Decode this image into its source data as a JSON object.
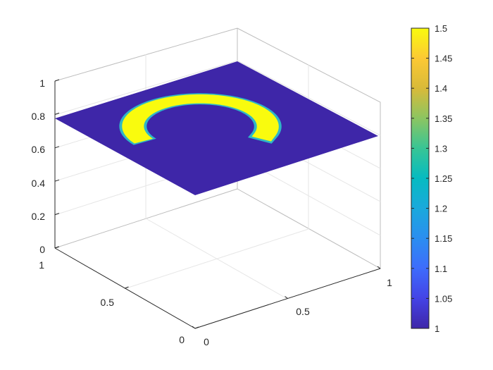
{
  "chart_data": {
    "type": "surface",
    "title": "",
    "xlabel": "",
    "ylabel": "",
    "zlabel": "",
    "xlim": [
      0,
      1
    ],
    "ylim": [
      0,
      1
    ],
    "zlim": [
      0,
      1
    ],
    "x_ticks": [
      "0",
      "0.5",
      "1"
    ],
    "y_ticks": [
      "0",
      "0.5",
      "1"
    ],
    "z_ticks": [
      "0",
      "0.2",
      "0.4",
      "0.6",
      "0.8",
      "1"
    ],
    "surface_height": 0.8,
    "grid": true,
    "colormap": "parula",
    "color_range": [
      1,
      1.5
    ],
    "colorbar": {
      "placement": "right",
      "ticks": [
        "1",
        "1.05",
        "1.1",
        "1.15",
        "1.2",
        "1.25",
        "1.3",
        "1.35",
        "1.4",
        "1.45",
        "1.5"
      ]
    },
    "background_value": 1,
    "shape_value": 1.5,
    "shape": "C-shaped ring"
  },
  "colors": {
    "low": "#3e26a8",
    "high": "#f9fb0e",
    "axis": "#262626",
    "grid": "#e6e6e6"
  }
}
